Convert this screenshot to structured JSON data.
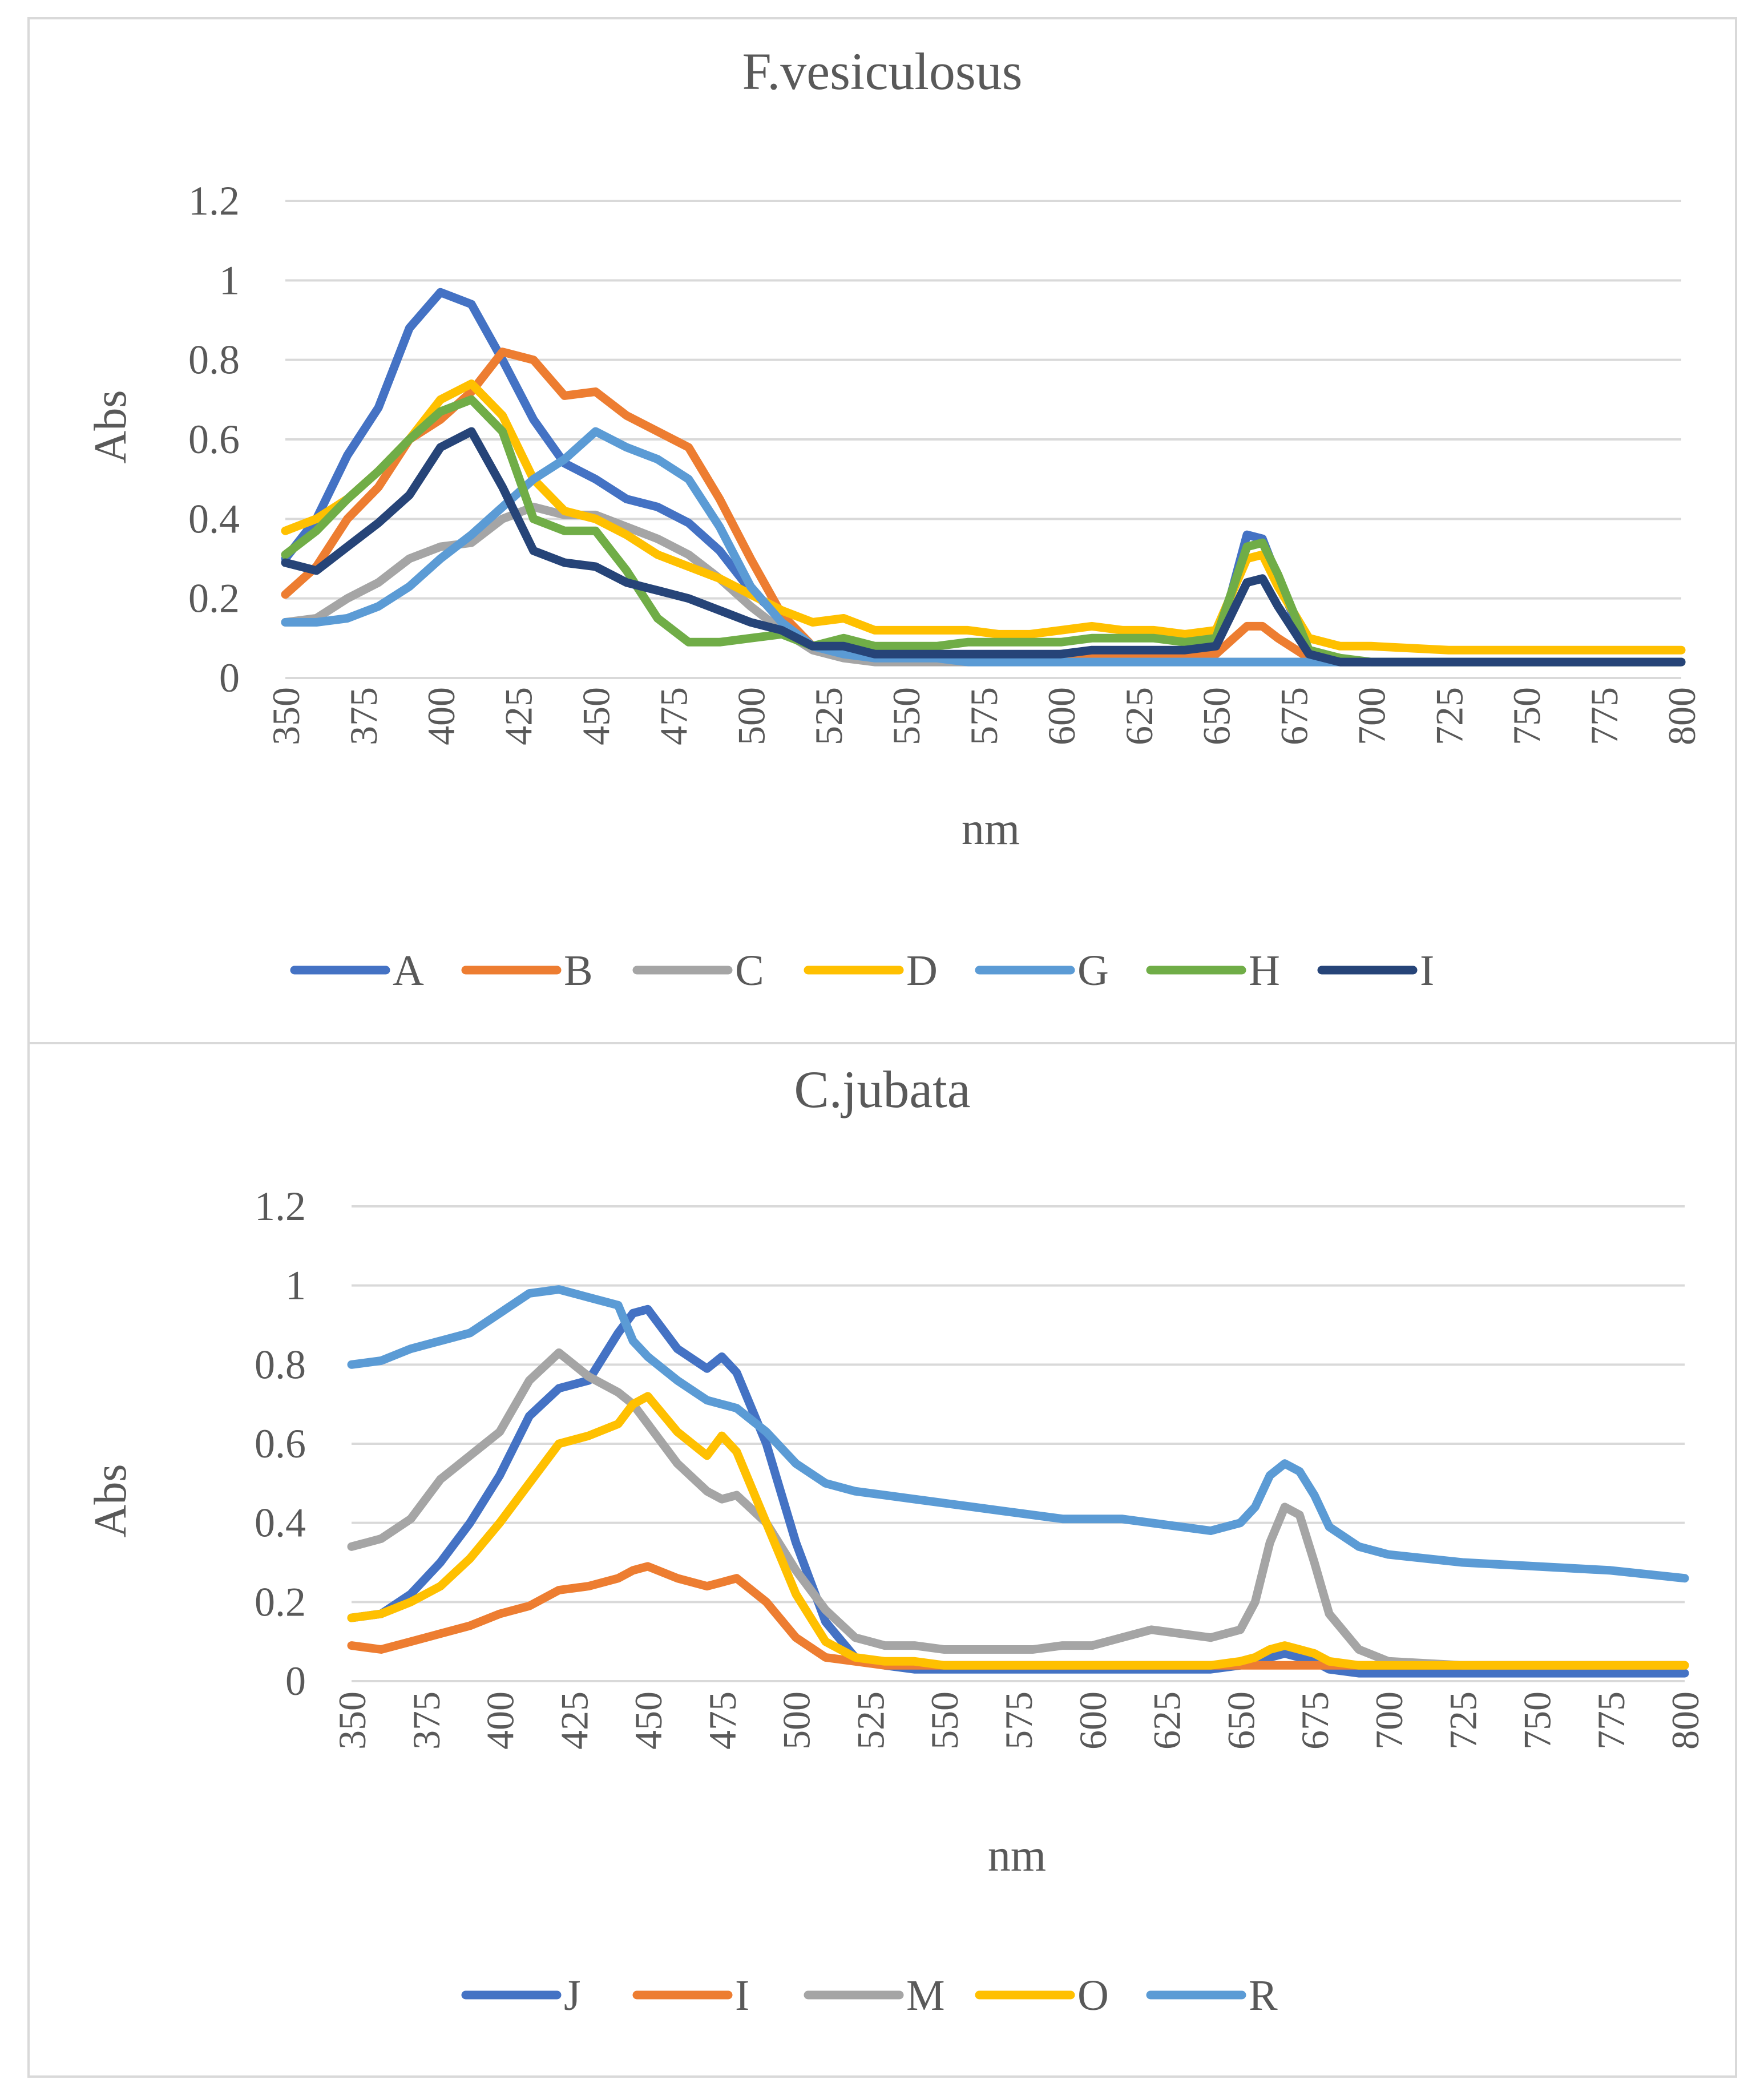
{
  "chart_data": [
    {
      "type": "line",
      "title": "F.vesiculosus",
      "xlabel": "nm",
      "ylabel": "Abs",
      "xlim": [
        350,
        800
      ],
      "ylim": [
        0,
        1.2
      ],
      "x": [
        350,
        360,
        370,
        380,
        390,
        400,
        410,
        420,
        430,
        440,
        450,
        460,
        470,
        480,
        490,
        500,
        510,
        520,
        530,
        540,
        550,
        560,
        570,
        580,
        590,
        600,
        610,
        620,
        630,
        640,
        650,
        660,
        665,
        670,
        680,
        690,
        700,
        725,
        750,
        775,
        800
      ],
      "yticks": [
        "0",
        "0.2",
        "0.4",
        "0.6",
        "0.8",
        "1",
        "1.2"
      ],
      "xticks": [
        "350",
        "375",
        "400",
        "425",
        "450",
        "475",
        "500",
        "525",
        "550",
        "575",
        "600",
        "625",
        "650",
        "675",
        "700",
        "725",
        "750",
        "775",
        "800"
      ],
      "legend": "bottom",
      "grid": true,
      "series": [
        {
          "name": "A",
          "color": "#4472c4",
          "values": [
            0.3,
            0.4,
            0.56,
            0.68,
            0.88,
            0.97,
            0.94,
            0.8,
            0.65,
            0.54,
            0.5,
            0.45,
            0.43,
            0.39,
            0.32,
            0.22,
            0.15,
            0.08,
            0.06,
            0.05,
            0.05,
            0.05,
            0.05,
            0.05,
            0.05,
            0.05,
            0.06,
            0.06,
            0.06,
            0.06,
            0.07,
            0.36,
            0.35,
            0.25,
            0.06,
            0.04,
            0.04,
            0.04,
            0.04,
            0.04,
            0.04
          ]
        },
        {
          "name": "B",
          "color": "#ed7d31",
          "values": [
            0.21,
            0.28,
            0.4,
            0.48,
            0.6,
            0.65,
            0.72,
            0.82,
            0.8,
            0.71,
            0.72,
            0.66,
            0.62,
            0.58,
            0.45,
            0.3,
            0.16,
            0.08,
            0.06,
            0.05,
            0.05,
            0.05,
            0.05,
            0.05,
            0.05,
            0.06,
            0.06,
            0.06,
            0.06,
            0.06,
            0.06,
            0.13,
            0.13,
            0.1,
            0.05,
            0.04,
            0.04,
            0.04,
            0.04,
            0.04,
            0.04
          ]
        },
        {
          "name": "C",
          "color": "#a5a5a5",
          "values": [
            0.14,
            0.15,
            0.2,
            0.24,
            0.3,
            0.33,
            0.34,
            0.4,
            0.43,
            0.41,
            0.41,
            0.38,
            0.35,
            0.31,
            0.25,
            0.18,
            0.12,
            0.07,
            0.05,
            0.04,
            0.04,
            0.04,
            0.04,
            0.04,
            0.04,
            0.04,
            0.04,
            0.04,
            0.04,
            0.04,
            0.04,
            0.04,
            0.04,
            0.04,
            0.04,
            0.04,
            0.04,
            0.04,
            0.04,
            0.04,
            0.04
          ]
        },
        {
          "name": "D",
          "color": "#ffc000",
          "values": [
            0.37,
            0.4,
            0.45,
            0.52,
            0.6,
            0.7,
            0.74,
            0.66,
            0.5,
            0.42,
            0.4,
            0.36,
            0.31,
            0.28,
            0.25,
            0.21,
            0.17,
            0.14,
            0.15,
            0.12,
            0.12,
            0.12,
            0.12,
            0.11,
            0.11,
            0.12,
            0.13,
            0.12,
            0.12,
            0.11,
            0.12,
            0.3,
            0.31,
            0.23,
            0.1,
            0.08,
            0.08,
            0.07,
            0.07,
            0.07,
            0.07
          ]
        },
        {
          "name": "G",
          "color": "#5b9bd5",
          "values": [
            0.14,
            0.14,
            0.15,
            0.18,
            0.23,
            0.3,
            0.36,
            0.43,
            0.5,
            0.55,
            0.62,
            0.58,
            0.55,
            0.5,
            0.38,
            0.23,
            0.14,
            0.08,
            0.06,
            0.05,
            0.05,
            0.05,
            0.04,
            0.04,
            0.04,
            0.04,
            0.04,
            0.04,
            0.04,
            0.04,
            0.04,
            0.04,
            0.04,
            0.04,
            0.04,
            0.04,
            0.04,
            0.04,
            0.04,
            0.04,
            0.04
          ]
        },
        {
          "name": "H",
          "color": "#70ad47",
          "values": [
            0.31,
            0.37,
            0.45,
            0.52,
            0.6,
            0.67,
            0.7,
            0.62,
            0.4,
            0.37,
            0.37,
            0.27,
            0.15,
            0.09,
            0.09,
            0.1,
            0.11,
            0.08,
            0.1,
            0.08,
            0.08,
            0.08,
            0.09,
            0.09,
            0.09,
            0.09,
            0.1,
            0.1,
            0.1,
            0.09,
            0.1,
            0.33,
            0.34,
            0.26,
            0.07,
            0.05,
            0.04,
            0.04,
            0.04,
            0.04,
            0.04
          ]
        },
        {
          "name": "I",
          "color": "#264478",
          "values": [
            0.29,
            0.27,
            0.33,
            0.39,
            0.46,
            0.58,
            0.62,
            0.48,
            0.32,
            0.29,
            0.28,
            0.24,
            0.22,
            0.2,
            0.17,
            0.14,
            0.12,
            0.08,
            0.08,
            0.06,
            0.06,
            0.06,
            0.06,
            0.06,
            0.06,
            0.06,
            0.07,
            0.07,
            0.07,
            0.07,
            0.08,
            0.24,
            0.25,
            0.18,
            0.06,
            0.04,
            0.04,
            0.04,
            0.04,
            0.04,
            0.04
          ]
        }
      ]
    },
    {
      "type": "line",
      "title": "C.jubata",
      "xlabel": "nm",
      "ylabel": "Abs",
      "xlim": [
        350,
        800
      ],
      "ylim": [
        0,
        1.2
      ],
      "x": [
        350,
        360,
        370,
        380,
        390,
        400,
        410,
        420,
        430,
        440,
        445,
        450,
        460,
        470,
        475,
        480,
        490,
        500,
        510,
        520,
        530,
        540,
        550,
        560,
        570,
        580,
        590,
        600,
        610,
        620,
        630,
        640,
        650,
        655,
        660,
        665,
        670,
        675,
        680,
        690,
        700,
        725,
        750,
        775,
        800
      ],
      "yticks": [
        "0",
        "0.2",
        "0.4",
        "0.6",
        "0.8",
        "1",
        "1.2"
      ],
      "xticks": [
        "350",
        "375",
        "400",
        "425",
        "450",
        "475",
        "500",
        "525",
        "550",
        "575",
        "600",
        "625",
        "650",
        "675",
        "700",
        "725",
        "750",
        "775",
        "800"
      ],
      "legend": "bottom",
      "grid": true,
      "series": [
        {
          "name": "J",
          "color": "#4472c4",
          "values": [
            0.16,
            0.17,
            0.22,
            0.3,
            0.4,
            0.52,
            0.67,
            0.74,
            0.76,
            0.88,
            0.93,
            0.94,
            0.84,
            0.79,
            0.82,
            0.78,
            0.6,
            0.35,
            0.15,
            0.06,
            0.04,
            0.03,
            0.03,
            0.03,
            0.03,
            0.03,
            0.03,
            0.03,
            0.03,
            0.03,
            0.03,
            0.03,
            0.04,
            0.05,
            0.06,
            0.07,
            0.06,
            0.05,
            0.03,
            0.02,
            0.02,
            0.02,
            0.02,
            0.02,
            0.02
          ]
        },
        {
          "name": "I",
          "color": "#ed7d31",
          "values": [
            0.09,
            0.08,
            0.1,
            0.12,
            0.14,
            0.17,
            0.19,
            0.23,
            0.24,
            0.26,
            0.28,
            0.29,
            0.26,
            0.24,
            0.25,
            0.26,
            0.2,
            0.11,
            0.06,
            0.05,
            0.04,
            0.04,
            0.04,
            0.04,
            0.04,
            0.04,
            0.04,
            0.04,
            0.04,
            0.04,
            0.04,
            0.04,
            0.04,
            0.04,
            0.04,
            0.04,
            0.04,
            0.04,
            0.04,
            0.04,
            0.04,
            0.04,
            0.04,
            0.04,
            0.04
          ]
        },
        {
          "name": "M",
          "color": "#a5a5a5",
          "values": [
            0.34,
            0.36,
            0.41,
            0.51,
            0.57,
            0.63,
            0.76,
            0.83,
            0.77,
            0.73,
            0.7,
            0.65,
            0.55,
            0.48,
            0.46,
            0.47,
            0.4,
            0.28,
            0.18,
            0.11,
            0.09,
            0.09,
            0.08,
            0.08,
            0.08,
            0.08,
            0.09,
            0.09,
            0.11,
            0.13,
            0.12,
            0.11,
            0.13,
            0.2,
            0.35,
            0.44,
            0.42,
            0.3,
            0.17,
            0.08,
            0.05,
            0.04,
            0.04,
            0.04,
            0.04
          ]
        },
        {
          "name": "O",
          "color": "#ffc000",
          "values": [
            0.16,
            0.17,
            0.2,
            0.24,
            0.31,
            0.4,
            0.5,
            0.6,
            0.62,
            0.65,
            0.7,
            0.72,
            0.63,
            0.57,
            0.62,
            0.58,
            0.4,
            0.22,
            0.1,
            0.06,
            0.05,
            0.05,
            0.04,
            0.04,
            0.04,
            0.04,
            0.04,
            0.04,
            0.04,
            0.04,
            0.04,
            0.04,
            0.05,
            0.06,
            0.08,
            0.09,
            0.08,
            0.07,
            0.05,
            0.04,
            0.04,
            0.04,
            0.04,
            0.04,
            0.04
          ]
        },
        {
          "name": "R",
          "color": "#5b9bd5",
          "values": [
            0.8,
            0.81,
            0.84,
            0.86,
            0.88,
            0.93,
            0.98,
            0.99,
            0.97,
            0.95,
            0.86,
            0.82,
            0.76,
            0.71,
            0.7,
            0.69,
            0.63,
            0.55,
            0.5,
            0.48,
            0.47,
            0.46,
            0.45,
            0.44,
            0.43,
            0.42,
            0.41,
            0.41,
            0.41,
            0.4,
            0.39,
            0.38,
            0.4,
            0.44,
            0.52,
            0.55,
            0.53,
            0.47,
            0.39,
            0.34,
            0.32,
            0.3,
            0.29,
            0.28,
            0.26
          ]
        }
      ]
    }
  ]
}
